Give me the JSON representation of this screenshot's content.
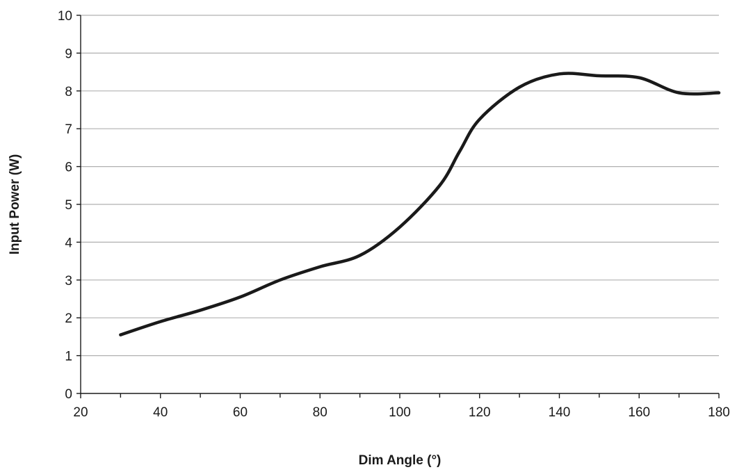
{
  "chart_data": {
    "type": "line",
    "title": "",
    "xlabel": "Dim Angle (°)",
    "ylabel": "Input Power (W)",
    "xlim": [
      20,
      180
    ],
    "ylim": [
      0,
      10
    ],
    "x_ticks": [
      20,
      40,
      60,
      80,
      100,
      120,
      140,
      160,
      180
    ],
    "x_minor_ticks": [
      30,
      50,
      70,
      90,
      110,
      130,
      150,
      170
    ],
    "y_ticks": [
      0,
      1,
      2,
      3,
      4,
      5,
      6,
      7,
      8,
      9,
      10
    ],
    "grid": "horizontal",
    "legend": "none",
    "line_color": "#1a1a1a",
    "series": [
      {
        "x": [
          30,
          40,
          50,
          60,
          70,
          80,
          90,
          100,
          110,
          115,
          120,
          130,
          140,
          150,
          160,
          170,
          180
        ],
        "y": [
          1.55,
          1.9,
          2.2,
          2.55,
          3.0,
          3.35,
          3.65,
          4.4,
          5.5,
          6.4,
          7.25,
          8.1,
          8.45,
          8.4,
          8.35,
          7.95,
          7.95
        ]
      }
    ]
  }
}
